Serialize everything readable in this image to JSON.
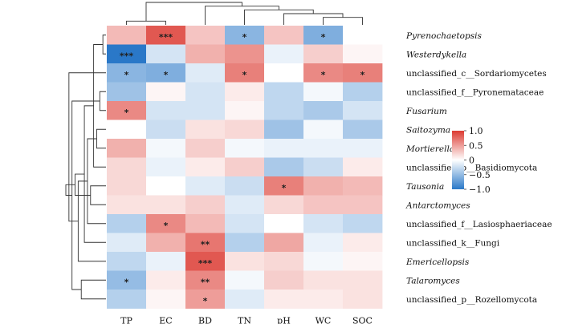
{
  "chart_data": {
    "type": "heatmap",
    "title": "",
    "columns": [
      "TP",
      "EC",
      "BD",
      "TN",
      "pH",
      "WC",
      "SOC"
    ],
    "rows": [
      {
        "label": "Pyrenochaetopsis",
        "italic": true
      },
      {
        "label": "Westerdykella",
        "italic": true
      },
      {
        "label": "unclassified_c__Sordariomycetes",
        "italic": false
      },
      {
        "label": "unclassified_f__Pyronemataceae",
        "italic": false
      },
      {
        "label": "Fusarium",
        "italic": true
      },
      {
        "label": "Saitozyma",
        "italic": true
      },
      {
        "label": "Mortierella",
        "italic": true
      },
      {
        "label": "unclassified_p__Basidiomycota",
        "italic": false
      },
      {
        "label": "Tausonia",
        "italic": true
      },
      {
        "label": "Antarctomyces",
        "italic": true
      },
      {
        "label": "unclassified_f__Lasiosphaeriaceae",
        "italic": false
      },
      {
        "label": "unclassified_k__Fungi",
        "italic": false
      },
      {
        "label": "Emericellopsis",
        "italic": true
      },
      {
        "label": "Talaromyces",
        "italic": true
      },
      {
        "label": "unclassified_p__Rozellomycota",
        "italic": false
      }
    ],
    "values": [
      [
        0.35,
        0.85,
        0.3,
        -0.55,
        0.3,
        -0.6,
        0.0
      ],
      [
        -1.0,
        -0.2,
        0.4,
        0.55,
        -0.1,
        0.25,
        0.05
      ],
      [
        -0.55,
        -0.6,
        -0.15,
        0.65,
        0.0,
        0.6,
        0.65
      ],
      [
        -0.45,
        0.05,
        -0.2,
        0.1,
        -0.3,
        -0.05,
        -0.35
      ],
      [
        0.6,
        -0.2,
        -0.2,
        0.05,
        -0.3,
        -0.4,
        -0.2
      ],
      [
        0.0,
        -0.25,
        0.15,
        0.2,
        -0.45,
        -0.05,
        -0.4
      ],
      [
        0.4,
        -0.05,
        0.25,
        -0.05,
        -0.1,
        -0.1,
        -0.1
      ],
      [
        0.2,
        -0.1,
        0.1,
        0.25,
        -0.4,
        -0.25,
        0.1
      ],
      [
        0.2,
        0.0,
        -0.15,
        -0.25,
        0.65,
        0.4,
        0.35
      ],
      [
        0.15,
        0.15,
        0.25,
        -0.15,
        0.2,
        0.3,
        0.3
      ],
      [
        -0.35,
        0.6,
        0.35,
        -0.2,
        0.0,
        -0.2,
        -0.3
      ],
      [
        -0.15,
        0.4,
        0.7,
        -0.35,
        0.45,
        -0.1,
        0.1
      ],
      [
        -0.3,
        -0.1,
        0.85,
        0.15,
        0.2,
        -0.05,
        0.05
      ],
      [
        -0.5,
        0.1,
        0.6,
        -0.05,
        0.25,
        0.15,
        0.15
      ],
      [
        -0.35,
        0.05,
        0.5,
        -0.15,
        0.1,
        0.1,
        0.15
      ]
    ],
    "significance": [
      [
        "",
        "***",
        "",
        "*",
        "",
        "*",
        ""
      ],
      [
        "***",
        "",
        "",
        "",
        "",
        "",
        ""
      ],
      [
        "*",
        "*",
        "",
        "*",
        "",
        "*",
        "*"
      ],
      [
        "",
        "",
        "",
        "",
        "",
        "",
        ""
      ],
      [
        "*",
        "",
        "",
        "",
        "",
        "",
        ""
      ],
      [
        "",
        "",
        "",
        "",
        "",
        "",
        ""
      ],
      [
        "",
        "",
        "",
        "",
        "",
        "",
        ""
      ],
      [
        "",
        "",
        "",
        "",
        "",
        "",
        ""
      ],
      [
        "",
        "",
        "",
        "",
        "*",
        "",
        ""
      ],
      [
        "",
        "",
        "",
        "",
        "",
        "",
        ""
      ],
      [
        "",
        "*",
        "",
        "",
        "",
        "",
        ""
      ],
      [
        "",
        "",
        "**",
        "",
        "",
        "",
        ""
      ],
      [
        "",
        "",
        "***",
        "",
        "",
        "",
        ""
      ],
      [
        "*",
        "",
        "**",
        "",
        "",
        "",
        ""
      ],
      [
        "",
        "",
        "*",
        "",
        "",
        "",
        ""
      ]
    ],
    "colorbar": {
      "min": -1.0,
      "max": 1.0,
      "ticks": [
        1.0,
        0.5,
        0,
        -0.5,
        -1.0
      ],
      "tick_labels": [
        "1.0",
        "0.5",
        "0",
        "−0.5",
        "−1.0"
      ],
      "low_color": "#2a78c8",
      "mid_color": "#ffffff",
      "high_color": "#dc3b32"
    },
    "column_dendrogram": [
      [
        0,
        1
      ],
      [
        5,
        6
      ],
      [
        4,
        8
      ],
      [
        3,
        9
      ],
      [
        2,
        10
      ],
      [
        7,
        11
      ]
    ],
    "row_dendrogram": [
      [
        0,
        1
      ],
      [
        3,
        4
      ],
      [
        5,
        6
      ],
      [
        15,
        7
      ],
      [
        8,
        9
      ],
      [
        17,
        10
      ],
      [
        18,
        11
      ],
      [
        13,
        14
      ],
      [
        20,
        12
      ],
      [
        19,
        21
      ],
      [
        16,
        22
      ],
      [
        2,
        23
      ],
      [
        24,
        25
      ]
    ]
  }
}
